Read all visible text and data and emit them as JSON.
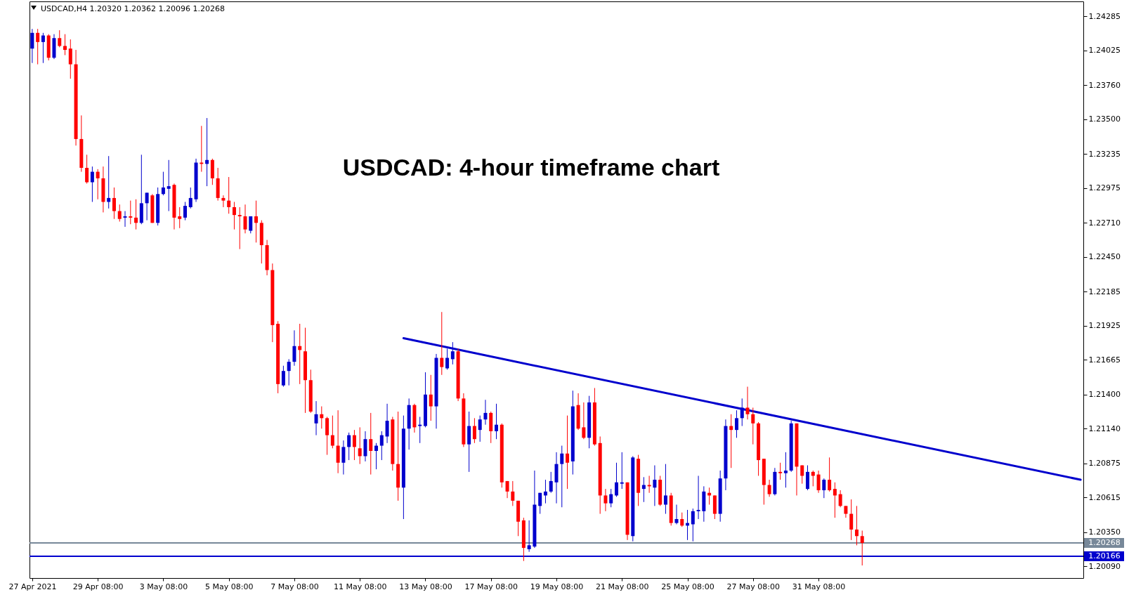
{
  "chart_data": {
    "type": "candlestick",
    "title": "USDCAD: 4-hour timeframe chart",
    "subtitle": "USDCAD,H4  1.20320 1.20362 1.20096 1.20268",
    "categories": [
      "27 Apr 2021",
      null,
      null,
      null,
      null,
      null,
      null,
      null,
      null,
      null,
      null,
      null,
      "29 Apr 08:00",
      null,
      null,
      null,
      null,
      null,
      null,
      null,
      null,
      null,
      null,
      null,
      "3 May 08:00",
      null,
      null,
      null,
      null,
      null,
      null,
      null,
      null,
      null,
      null,
      null,
      "5 May 08:00",
      null,
      null,
      null,
      null,
      null,
      null,
      null,
      null,
      null,
      null,
      null,
      "7 May 08:00",
      null,
      null,
      null,
      null,
      null,
      null,
      null,
      null,
      null,
      null,
      null,
      "11 May 08:00",
      null,
      null,
      null,
      null,
      null,
      null,
      null,
      null,
      null,
      null,
      null,
      "13 May 08:00",
      null,
      null,
      null,
      null,
      null,
      null,
      null,
      null,
      null,
      null,
      null,
      "17 May 08:00",
      null,
      null,
      null,
      null,
      null,
      null,
      null,
      null,
      null,
      null,
      null,
      "19 May 08:00",
      null,
      null,
      null,
      null,
      null,
      null,
      null,
      null,
      null,
      null,
      null,
      "21 May 08:00",
      null,
      null,
      null,
      null,
      null,
      null,
      null,
      null,
      null,
      null,
      null,
      "25 May 08:00",
      null,
      null,
      null,
      null,
      null,
      null,
      null,
      null,
      null,
      null,
      null,
      "27 May 08:00",
      null,
      null,
      null,
      null,
      null,
      null,
      null,
      null,
      null,
      null,
      null,
      "31 May 08:00",
      null,
      null,
      null,
      null,
      null,
      null,
      null,
      null,
      null,
      null,
      null,
      null,
      null,
      null,
      null,
      null,
      null,
      null,
      null,
      null,
      null,
      null,
      null,
      null,
      null,
      null,
      null,
      null,
      null,
      null,
      null,
      null,
      null,
      null,
      null,
      null,
      null,
      null,
      null,
      null,
      null,
      null,
      null,
      null,
      null,
      null,
      null,
      null
    ],
    "ohlc": [
      [
        1.2404,
        1.2419,
        1.2393,
        1.2416
      ],
      [
        1.2416,
        1.2419,
        1.2392,
        1.2409
      ],
      [
        1.2409,
        1.2416,
        1.2393,
        1.2414
      ],
      [
        1.2414,
        1.2415,
        1.2395,
        1.2397
      ],
      [
        1.2397,
        1.2415,
        1.2396,
        1.2412
      ],
      [
        1.2412,
        1.2418,
        1.2405,
        1.2406
      ],
      [
        1.2406,
        1.2415,
        1.2399,
        1.2403
      ],
      [
        1.2404,
        1.2411,
        1.2381,
        1.2392
      ],
      [
        1.2392,
        1.2403,
        1.233,
        1.2335
      ],
      [
        1.2335,
        1.2353,
        1.231,
        1.2313
      ],
      [
        1.2313,
        1.2323,
        1.2301,
        1.2302
      ],
      [
        1.2302,
        1.2314,
        1.2287,
        1.231
      ],
      [
        1.231,
        1.2312,
        1.2289,
        1.2305
      ],
      [
        1.2305,
        1.2314,
        1.2279,
        1.2287
      ],
      [
        1.2287,
        1.2322,
        1.2282,
        1.229
      ],
      [
        1.229,
        1.2298,
        1.2274,
        1.228
      ],
      [
        1.228,
        1.2285,
        1.2272,
        1.2274
      ],
      [
        1.2275,
        1.228,
        1.2268,
        1.2276
      ],
      [
        1.2276,
        1.2288,
        1.227,
        1.2275
      ],
      [
        1.2275,
        1.2289,
        1.2266,
        1.2271
      ],
      [
        1.2271,
        1.2323,
        1.227,
        1.2286
      ],
      [
        1.2286,
        1.2294,
        1.2273,
        1.2294
      ],
      [
        1.2292,
        1.2293,
        1.2271,
        1.2271
      ],
      [
        1.2271,
        1.2298,
        1.2269,
        1.2293
      ],
      [
        1.2293,
        1.231,
        1.2292,
        1.2298
      ],
      [
        1.2297,
        1.2319,
        1.228,
        1.2299
      ],
      [
        1.23,
        1.2301,
        1.2266,
        1.2275
      ],
      [
        1.2276,
        1.2283,
        1.2267,
        1.2274
      ],
      [
        1.2275,
        1.2287,
        1.2273,
        1.2284
      ],
      [
        1.2283,
        1.2298,
        1.2282,
        1.229
      ],
      [
        1.2289,
        1.232,
        1.2287,
        1.2317
      ],
      [
        1.2317,
        1.2345,
        1.231,
        1.2316
      ],
      [
        1.2316,
        1.2351,
        1.2299,
        1.2319
      ],
      [
        1.2319,
        1.232,
        1.23,
        1.2305
      ],
      [
        1.2305,
        1.2313,
        1.2288,
        1.229
      ],
      [
        1.229,
        1.2292,
        1.2283,
        1.2288
      ],
      [
        1.2288,
        1.2306,
        1.2278,
        1.2283
      ],
      [
        1.2283,
        1.2287,
        1.2266,
        1.2277
      ],
      [
        1.2277,
        1.2283,
        1.2251,
        1.2276
      ],
      [
        1.2276,
        1.2285,
        1.2263,
        1.2266
      ],
      [
        1.2265,
        1.2276,
        1.2263,
        1.2276
      ],
      [
        1.2276,
        1.2288,
        1.2256,
        1.2271
      ],
      [
        1.2271,
        1.2273,
        1.224,
        1.2254
      ],
      [
        1.2254,
        1.2258,
        1.2231,
        1.2235
      ],
      [
        1.2235,
        1.224,
        1.218,
        1.2193
      ],
      [
        1.2194,
        1.2196,
        1.2141,
        1.2148
      ],
      [
        1.2147,
        1.2162,
        1.2146,
        1.2158
      ],
      [
        1.2158,
        1.2167,
        1.2147,
        1.2165
      ],
      [
        1.2165,
        1.2189,
        1.2162,
        1.2177
      ],
      [
        1.2177,
        1.2194,
        1.2148,
        1.2174
      ],
      [
        1.2173,
        1.2191,
        1.2126,
        1.2151
      ],
      [
        1.2151,
        1.2159,
        1.2126,
        1.2127
      ],
      [
        1.2118,
        1.2135,
        1.2109,
        1.2125
      ],
      [
        1.2125,
        1.2131,
        1.2114,
        1.2122
      ],
      [
        1.2122,
        1.2123,
        1.2094,
        1.2109
      ],
      [
        1.2109,
        1.2124,
        1.2099,
        1.2101
      ],
      [
        1.2101,
        1.2128,
        1.208,
        1.2088
      ],
      [
        1.2088,
        1.2105,
        1.2079,
        1.21
      ],
      [
        1.21,
        1.2111,
        1.209,
        1.2109
      ],
      [
        1.2109,
        1.2113,
        1.209,
        1.21
      ],
      [
        1.2099,
        1.2115,
        1.2087,
        1.2093
      ],
      [
        1.2093,
        1.2112,
        1.2089,
        1.2106
      ],
      [
        1.2106,
        1.2126,
        1.2079,
        1.2097
      ],
      [
        1.2097,
        1.2103,
        1.2083,
        1.2101
      ],
      [
        1.2101,
        1.2112,
        1.209,
        1.2109
      ],
      [
        1.2108,
        1.2133,
        1.2103,
        1.212
      ],
      [
        1.2121,
        1.2123,
        1.2082,
        1.2087
      ],
      [
        1.2087,
        1.2127,
        1.2059,
        1.2069
      ],
      [
        1.2069,
        1.2124,
        1.2045,
        1.2114
      ],
      [
        1.2114,
        1.2137,
        1.2098,
        1.2132
      ],
      [
        1.2132,
        1.2133,
        1.2111,
        1.2115
      ],
      [
        1.2116,
        1.2123,
        1.2103,
        1.2117
      ],
      [
        1.2116,
        1.2157,
        1.2115,
        1.214
      ],
      [
        1.214,
        1.2155,
        1.212,
        1.2131
      ],
      [
        1.2131,
        1.2171,
        1.2114,
        1.2168
      ],
      [
        1.2168,
        1.2203,
        1.2155,
        1.2161
      ],
      [
        1.216,
        1.2175,
        1.2159,
        1.2168
      ],
      [
        1.2167,
        1.218,
        1.2163,
        1.2173
      ],
      [
        1.2173,
        1.2175,
        1.2135,
        1.2137
      ],
      [
        1.2137,
        1.2141,
        1.21,
        1.2102
      ],
      [
        1.2102,
        1.2127,
        1.2081,
        1.2116
      ],
      [
        1.2116,
        1.2122,
        1.2103,
        1.2106
      ],
      [
        1.2113,
        1.2124,
        1.2104,
        1.2121
      ],
      [
        1.2121,
        1.2136,
        1.2117,
        1.2126
      ],
      [
        1.2126,
        1.2127,
        1.2103,
        1.2112
      ],
      [
        1.2112,
        1.2133,
        1.2106,
        1.2117
      ],
      [
        1.2117,
        1.2118,
        1.2069,
        1.2073
      ],
      [
        1.2074,
        1.2074,
        1.2061,
        1.2066
      ],
      [
        1.2066,
        1.2074,
        1.2055,
        1.2059
      ],
      [
        1.2059,
        1.2059,
        1.2032,
        1.2043
      ],
      [
        1.2044,
        1.2046,
        1.2013,
        1.2023
      ],
      [
        1.2022,
        1.2044,
        1.202,
        1.2025
      ],
      [
        1.2024,
        1.2082,
        1.2023,
        1.2056
      ],
      [
        1.2055,
        1.2065,
        1.2049,
        1.2065
      ],
      [
        1.2063,
        1.2075,
        1.2057,
        1.2066
      ],
      [
        1.2066,
        1.2081,
        1.2065,
        1.2074
      ],
      [
        1.2073,
        1.2096,
        1.2057,
        1.2087
      ],
      [
        1.2087,
        1.2101,
        1.2054,
        1.2095
      ],
      [
        1.2095,
        1.2124,
        1.2068,
        1.2088
      ],
      [
        1.2089,
        1.2143,
        1.2079,
        1.2131
      ],
      [
        1.2132,
        1.2141,
        1.2113,
        1.2114
      ],
      [
        1.2115,
        1.2134,
        1.2106,
        1.2107
      ],
      [
        1.2107,
        1.2139,
        1.2099,
        1.2134
      ],
      [
        1.2134,
        1.2145,
        1.2101,
        1.2102
      ],
      [
        1.2103,
        1.2108,
        1.2049,
        1.2063
      ],
      [
        1.2063,
        1.2068,
        1.2051,
        1.2057
      ],
      [
        1.2057,
        1.2068,
        1.2054,
        1.2064
      ],
      [
        1.2063,
        1.2088,
        1.2062,
        1.2073
      ],
      [
        1.2072,
        1.2096,
        1.2068,
        1.2073
      ],
      [
        1.2073,
        1.2073,
        1.2029,
        1.2033
      ],
      [
        1.2032,
        1.2093,
        1.2028,
        1.2092
      ],
      [
        1.2091,
        1.2094,
        1.2055,
        1.2065
      ],
      [
        1.2068,
        1.2077,
        1.2058,
        1.2071
      ],
      [
        1.2071,
        1.2078,
        1.2065,
        1.207
      ],
      [
        1.2069,
        1.2086,
        1.2055,
        1.2075
      ],
      [
        1.2075,
        1.2078,
        1.2055,
        1.2056
      ],
      [
        1.2056,
        1.2087,
        1.2049,
        1.2063
      ],
      [
        1.2063,
        1.2065,
        1.204,
        1.2042
      ],
      [
        1.2042,
        1.2056,
        1.2041,
        1.2045
      ],
      [
        1.2045,
        1.205,
        1.2039,
        1.204
      ],
      [
        1.204,
        1.2052,
        1.2029,
        1.2042
      ],
      [
        1.2041,
        1.2053,
        1.2028,
        1.2051
      ],
      [
        1.2051,
        1.2078,
        1.2045,
        1.2052
      ],
      [
        1.2051,
        1.207,
        1.2043,
        1.2066
      ],
      [
        1.2065,
        1.2069,
        1.2056,
        1.2063
      ],
      [
        1.2063,
        1.2063,
        1.2045,
        1.2049
      ],
      [
        1.2049,
        1.2082,
        1.2043,
        1.2076
      ],
      [
        1.2076,
        1.2121,
        1.2067,
        1.2116
      ],
      [
        1.2116,
        1.2125,
        1.2084,
        1.2113
      ],
      [
        1.2113,
        1.2128,
        1.2107,
        1.2122
      ],
      [
        1.2122,
        1.2137,
        1.2116,
        1.213
      ],
      [
        1.213,
        1.2146,
        1.2121,
        1.2125
      ],
      [
        1.2125,
        1.213,
        1.2102,
        1.2118
      ],
      [
        1.2118,
        1.2119,
        1.2078,
        1.209
      ],
      [
        1.2091,
        1.2091,
        1.2056,
        1.2071
      ],
      [
        1.2071,
        1.2075,
        1.2062,
        1.2064
      ],
      [
        1.2064,
        1.2084,
        1.2063,
        1.2081
      ],
      [
        1.2081,
        1.2088,
        1.2075,
        1.208
      ],
      [
        1.208,
        1.2096,
        1.2069,
        1.2082
      ],
      [
        1.2082,
        1.212,
        1.2081,
        1.2118
      ],
      [
        1.2118,
        1.2118,
        1.2063,
        1.2085
      ],
      [
        1.2086,
        1.2086,
        1.2072,
        1.2078
      ],
      [
        1.2068,
        1.2086,
        1.2067,
        1.2081
      ],
      [
        1.2081,
        1.2082,
        1.207,
        1.2078
      ],
      [
        1.2079,
        1.2082,
        1.2065,
        1.2067
      ],
      [
        1.2067,
        1.2076,
        1.2061,
        1.2075
      ],
      [
        1.2075,
        1.2092,
        1.2066,
        1.2067
      ],
      [
        1.2068,
        1.2073,
        1.2046,
        1.2063
      ],
      [
        1.2064,
        1.2067,
        1.2054,
        1.2055
      ],
      [
        1.2055,
        1.2055,
        1.2046,
        1.2049
      ],
      [
        1.2049,
        1.206,
        1.2029,
        1.2037
      ],
      [
        1.2037,
        1.2055,
        1.2025,
        1.2032
      ],
      [
        1.2032,
        1.20362,
        1.20096,
        1.20268
      ],
      null,
      null,
      null,
      null,
      null,
      null,
      null,
      null,
      null,
      null,
      null,
      null,
      null,
      null,
      null,
      null,
      null,
      null,
      null,
      null,
      null,
      null,
      null,
      null,
      null,
      null,
      null,
      null,
      null,
      null,
      null,
      null,
      null,
      null,
      null,
      null,
      null,
      null,
      null,
      null
    ],
    "colors": [
      "#0000cd",
      "#ff0000",
      "#0000cd",
      "#ff0000",
      "#0000cd",
      "#ff0000",
      "#ff0000",
      "#ff0000",
      "#ff0000",
      "#ff0000",
      "#ff0000",
      "#0000cd",
      "#ff0000",
      "#ff0000",
      "#0000cd",
      "#ff0000",
      "#ff0000",
      "#0000cd",
      "#ff0000",
      "#ff0000",
      "#0000cd",
      "#0000cd",
      "#ff0000",
      "#0000cd",
      "#0000cd",
      "#0000cd",
      "#ff0000",
      "#ff0000",
      "#0000cd",
      "#0000cd",
      "#0000cd",
      "#ff0000",
      "#0000cd",
      "#ff0000",
      "#ff0000",
      "#ff0000",
      "#ff0000",
      "#ff0000",
      "#ff0000",
      "#ff0000",
      "#0000cd",
      "#ff0000",
      "#ff0000",
      "#ff0000",
      "#ff0000",
      "#ff0000",
      "#0000cd",
      "#0000cd",
      "#0000cd",
      "#ff0000",
      "#ff0000",
      "#ff0000",
      "#0000cd",
      "#ff0000",
      "#ff0000",
      "#ff0000",
      "#ff0000",
      "#0000cd",
      "#0000cd",
      "#ff0000",
      "#ff0000",
      "#0000cd",
      "#ff0000",
      "#0000cd",
      "#0000cd",
      "#0000cd",
      "#ff0000",
      "#ff0000",
      "#0000cd",
      "#0000cd",
      "#ff0000",
      "#0000cd",
      "#0000cd",
      "#ff0000",
      "#0000cd",
      "#ff0000",
      "#0000cd",
      "#0000cd",
      "#ff0000",
      "#ff0000",
      "#0000cd",
      "#ff0000",
      "#0000cd",
      "#0000cd",
      "#ff0000",
      "#0000cd",
      "#ff0000",
      "#ff0000",
      "#ff0000",
      "#ff0000",
      "#ff0000",
      "#0000cd",
      "#0000cd",
      "#0000cd",
      "#0000cd",
      "#0000cd",
      "#0000cd",
      "#0000cd",
      "#ff0000",
      "#0000cd",
      "#ff0000",
      "#ff0000",
      "#0000cd",
      "#ff0000",
      "#ff0000",
      "#ff0000",
      "#0000cd",
      "#0000cd",
      "#0000cd",
      "#ff0000",
      "#0000cd",
      "#ff0000",
      "#0000cd",
      "#ff0000",
      "#0000cd",
      "#ff0000",
      "#0000cd",
      "#ff0000",
      "#0000cd",
      "#ff0000",
      "#0000cd",
      "#0000cd",
      "#0000cd",
      "#0000cd",
      "#ff0000",
      "#ff0000",
      "#0000cd",
      "#0000cd",
      "#ff0000",
      "#0000cd",
      "#0000cd",
      "#ff0000",
      "#ff0000",
      "#ff0000",
      "#ff0000",
      "#ff0000",
      "#0000cd",
      "#ff0000",
      "#0000cd",
      "#0000cd",
      "#ff0000",
      "#ff0000",
      "#0000cd",
      "#ff0000",
      "#ff0000",
      "#0000cd",
      "#ff0000",
      "#ff0000",
      "#ff0000",
      "#ff0000",
      "#ff0000",
      "#ff0000",
      "#ff0000",
      null,
      null,
      null,
      null,
      null,
      null,
      null,
      null,
      null,
      null,
      null,
      null,
      null,
      null,
      null,
      null,
      null,
      null,
      null,
      null,
      null,
      null,
      null,
      null,
      null,
      null,
      null,
      null,
      null,
      null,
      null,
      null,
      null,
      null,
      null,
      null,
      null,
      null,
      null,
      null
    ],
    "series": [
      {
        "type": "line",
        "color": "#0000cd",
        "values": [
          null,
          null,
          null,
          null,
          null,
          null,
          null,
          null,
          null,
          null,
          null,
          null,
          null,
          null,
          null,
          null,
          null,
          null,
          null,
          null,
          null,
          null,
          null,
          null,
          null,
          null,
          null,
          null,
          null,
          null,
          null,
          null,
          null,
          null,
          null,
          null,
          null,
          null,
          null,
          null,
          null,
          null,
          null,
          null,
          null,
          null,
          null,
          null,
          null,
          null,
          null,
          null,
          null,
          null,
          null,
          null,
          null,
          null,
          null,
          null,
          null,
          null,
          null,
          null,
          null,
          null,
          null,
          null,
          1.2183,
          null,
          null,
          null,
          null,
          null,
          null,
          null,
          null,
          null,
          null,
          null,
          null,
          null,
          null,
          null,
          null,
          null,
          null,
          null,
          null,
          null,
          null,
          null,
          null,
          null,
          null,
          null,
          null,
          null,
          null,
          null,
          null,
          null,
          null,
          null,
          null,
          null,
          null,
          null,
          null,
          null,
          null,
          null,
          null,
          null,
          null,
          null,
          null,
          null,
          null,
          null,
          null,
          null,
          null,
          null,
          null,
          null,
          null,
          null,
          null,
          null,
          null,
          null,
          null,
          null,
          null,
          null,
          null,
          null,
          null,
          null,
          null,
          null,
          null,
          null,
          null,
          null,
          null,
          null,
          null,
          null,
          null,
          null,
          null,
          null,
          null,
          null,
          null,
          null,
          null,
          null,
          null,
          null,
          null,
          null,
          null,
          null,
          null,
          null,
          null,
          null,
          null,
          null,
          null,
          null,
          null,
          null,
          null,
          null,
          null,
          null,
          null,
          null,
          null,
          null,
          null,
          null,
          null,
          null,
          null,
          null,
          null,
          null,
          1.2075
        ]
      }
    ],
    "ref_lines": [
      {
        "axis": "y",
        "value": 1.20268,
        "label": "1.20268",
        "color": "#778899"
      },
      {
        "axis": "y",
        "value": 1.20166,
        "label": "1.20166",
        "color": "#0000cd"
      }
    ],
    "ylim": [
      1.2,
      1.244
    ],
    "yticks": [
      {
        "value": 1.2009,
        "label": "1.20090"
      },
      {
        "value": 1.2035,
        "label": "1.20350"
      },
      1.20615,
      1.20875,
      {
        "value": 1.2114,
        "label": "1.21140"
      },
      {
        "value": 1.214,
        "label": "1.21400"
      },
      1.21665,
      1.21925,
      1.22185,
      {
        "value": 1.2245,
        "label": "1.22450"
      },
      {
        "value": 1.2271,
        "label": "1.22710"
      },
      1.22975,
      1.23235,
      {
        "value": 1.235,
        "label": "1.23500"
      },
      {
        "value": 1.2376,
        "label": "1.23760"
      },
      1.24025,
      1.24285
    ]
  }
}
